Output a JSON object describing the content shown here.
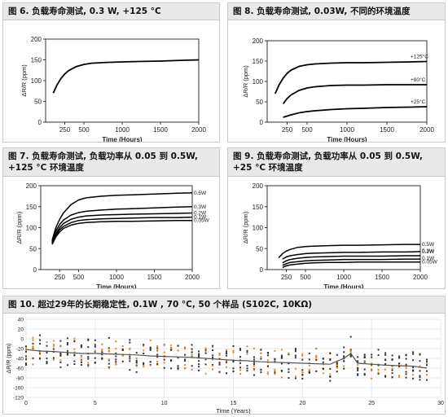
{
  "panels": [
    {
      "title_lines": [
        "图 6. 负载寿命测试, 0.3 W, +125 °C"
      ],
      "chart_data": {
        "type": "line",
        "ylabel": "ΔR/R (ppm)",
        "xlabel": "Time (Hours)",
        "xlim": [
          0,
          2000
        ],
        "ylim": [
          0,
          200
        ],
        "x_ticks": [
          250,
          500,
          1000,
          1500,
          2000
        ],
        "y_ticks": [
          0,
          50,
          100,
          150,
          200
        ],
        "series": [
          {
            "name": "",
            "x": [
              100,
              150,
              200,
              250,
              300,
              400,
              500,
              600,
              700,
              800,
              1000,
              1200,
              1500,
              1800,
              2000
            ],
            "y": [
              70,
              90,
              105,
              116,
              124,
              134,
              139,
              142,
              143,
              144,
              145,
              146,
              147,
              149,
              150
            ]
          }
        ]
      }
    },
    {
      "title_lines": [
        "图 8. 负载寿命测试, 0.03W, 不同的环境温度"
      ],
      "chart_data": {
        "type": "line",
        "ylabel": "ΔR/R (ppm)",
        "xlabel": "Time (Hours)",
        "xlim": [
          0,
          2000
        ],
        "ylim": [
          0,
          200
        ],
        "x_ticks": [
          250,
          500,
          1000,
          1500,
          2000
        ],
        "y_ticks": [
          0,
          50,
          100,
          150,
          200
        ],
        "series": [
          {
            "name": "+125°C",
            "x": [
              100,
              150,
              200,
              250,
              300,
              400,
              500,
              600,
              800,
              1000,
              1200,
              1500,
              1800,
              2000
            ],
            "y": [
              70,
              92,
              108,
              120,
              128,
              137,
              141,
              143,
              145,
              146,
              146,
              147,
              148,
              149
            ]
          },
          {
            "name": "+80°C",
            "x": [
              200,
              250,
              300,
              400,
              500,
              600,
              800,
              1000,
              1200,
              1500,
              1800,
              2000
            ],
            "y": [
              45,
              58,
              67,
              78,
              84,
              87,
              90,
              91,
              91,
              92,
              92,
              92
            ]
          },
          {
            "name": "+25°C",
            "x": [
              200,
              250,
              300,
              400,
              500,
              600,
              800,
              1000,
              1200,
              1500,
              1800,
              2000
            ],
            "y": [
              12,
              15,
              18,
              23,
              26,
              28,
              31,
              33,
              34,
              36,
              37,
              38
            ]
          }
        ]
      }
    },
    {
      "title_lines": [
        "图 7. 负载寿命测试, 负载功率从 0.05 到 0.5W,",
        "+125 °C 环境温度"
      ],
      "chart_data": {
        "type": "line",
        "ylabel": "ΔR/R (ppm)",
        "xlabel": "Time (Hours)",
        "xlim": [
          0,
          2000
        ],
        "ylim": [
          0,
          200
        ],
        "x_ticks": [
          250,
          500,
          1000,
          1500,
          2000
        ],
        "y_ticks": [
          0,
          50,
          100,
          150,
          200
        ],
        "series": [
          {
            "name": "0.5W",
            "x": [
              150,
              200,
              250,
              300,
              400,
              500,
              600,
              800,
              1000,
              1200,
              1500,
              1800,
              2000
            ],
            "y": [
              70,
              100,
              120,
              135,
              155,
              166,
              171,
              175,
              177,
              178,
              180,
              182,
              183
            ]
          },
          {
            "name": "0.3W",
            "x": [
              150,
              200,
              250,
              300,
              400,
              500,
              600,
              800,
              1000,
              1200,
              1500,
              1800,
              2000
            ],
            "y": [
              67,
              92,
              108,
              118,
              130,
              136,
              139,
              142,
              144,
              145,
              147,
              149,
              150
            ]
          },
          {
            "name": "0.2W",
            "x": [
              150,
              200,
              250,
              300,
              400,
              500,
              600,
              800,
              1000,
              1200,
              1500,
              1800,
              2000
            ],
            "y": [
              64,
              86,
              100,
              110,
              120,
              125,
              128,
              130,
              131,
              132,
              133,
              134,
              135
            ]
          },
          {
            "name": "0.1W",
            "x": [
              150,
              200,
              250,
              300,
              400,
              500,
              600,
              800,
              1000,
              1200,
              1500,
              1800,
              2000
            ],
            "y": [
              62,
              82,
              95,
              103,
              112,
              117,
              119,
              121,
              122,
              123,
              124,
              124,
              125
            ]
          },
          {
            "name": "0.05W",
            "x": [
              150,
              200,
              250,
              300,
              400,
              500,
              600,
              800,
              1000,
              1200,
              1500,
              1800,
              2000
            ],
            "y": [
              60,
              78,
              90,
              98,
              106,
              110,
              112,
              114,
              115,
              115,
              116,
              117,
              117
            ]
          }
        ]
      }
    },
    {
      "title_lines": [
        "图 9. 负载寿命测试, 负载功率从 0.05 到 0.5W,",
        "+25 °C 环境温度"
      ],
      "chart_data": {
        "type": "line",
        "ylabel": "ΔR/R (ppm)",
        "xlabel": "Time (Hours)",
        "xlim": [
          0,
          2000
        ],
        "ylim": [
          0,
          200
        ],
        "x_ticks": [
          250,
          500,
          1000,
          1500,
          2000
        ],
        "y_ticks": [
          0,
          50,
          100,
          150,
          200
        ],
        "series": [
          {
            "name": "0.5W",
            "x": [
              150,
              200,
              250,
              300,
              400,
              500,
              600,
              800,
              1000,
              1200,
              1500,
              1800,
              2000
            ],
            "y": [
              28,
              38,
              44,
              48,
              53,
              55,
              56,
              57,
              58,
              58,
              59,
              60,
              60
            ]
          },
          {
            "name": "0.3W",
            "x": [
              200,
              250,
              300,
              400,
              500,
              600,
              800,
              1000,
              1200,
              1500,
              1800,
              2000
            ],
            "y": [
              25,
              30,
              33,
              36,
              38,
              39,
              40,
              41,
              41,
              42,
              42,
              43
            ]
          },
          {
            "name": "0.2W",
            "x": [
              200,
              250,
              300,
              400,
              500,
              600,
              800,
              1000,
              1200,
              1500,
              1800,
              2000
            ],
            "y": [
              16,
              21,
              24,
              27,
              29,
              30,
              31,
              32,
              32,
              32,
              33,
              33
            ]
          },
          {
            "name": "0.1W",
            "x": [
              200,
              250,
              300,
              400,
              500,
              600,
              800,
              1000,
              1200,
              1500,
              1800,
              2000
            ],
            "y": [
              10,
              14,
              17,
              19,
              21,
              22,
              23,
              24,
              24,
              24,
              25,
              25
            ]
          },
          {
            "name": "0.05W",
            "x": [
              200,
              250,
              300,
              400,
              500,
              600,
              800,
              1000,
              1200,
              1500,
              1800,
              2000
            ],
            "y": [
              5,
              9,
              11,
              13,
              15,
              16,
              17,
              17,
              18,
              18,
              18,
              18
            ]
          }
        ]
      }
    },
    {
      "title_lines": [
        "图 10. 超过29年的长期稳定性, 0.1W , 70 °C, 50 个样品 (S102C, 10KΩ)"
      ],
      "chart_data": {
        "type": "scatter",
        "ylabel": "ΔR/R (ppm)",
        "xlabel": "Time (Years)",
        "xlim": [
          0,
          30
        ],
        "ylim": [
          -120,
          40
        ],
        "x_ticks": [
          0,
          5,
          10,
          15,
          20,
          25,
          30
        ],
        "y_ticks": [
          40,
          20,
          0,
          -20,
          -40,
          -60,
          -80,
          -100,
          -120
        ],
        "mean_line": {
          "x": [
            0,
            1,
            2,
            3,
            4,
            5,
            6,
            7,
            8,
            9,
            10,
            11,
            12,
            13,
            14,
            15,
            16,
            17,
            18,
            19,
            20,
            21,
            22,
            23,
            23.5,
            24,
            25,
            26,
            27,
            28,
            29
          ],
          "y": [
            -22,
            -25,
            -26,
            -28,
            -30,
            -30,
            -31,
            -32,
            -33,
            -35,
            -36,
            -37,
            -38,
            -40,
            -42,
            -44,
            -45,
            -47,
            -48,
            -49,
            -50,
            -51,
            -52,
            -40,
            -30,
            -50,
            -52,
            -54,
            -55,
            -56,
            -60
          ]
        },
        "scatter_spread_ppm": 55,
        "colors": {
          "points_dark": "#333333",
          "points_orange": "#e08a2a",
          "mean": "#555555"
        }
      }
    }
  ]
}
